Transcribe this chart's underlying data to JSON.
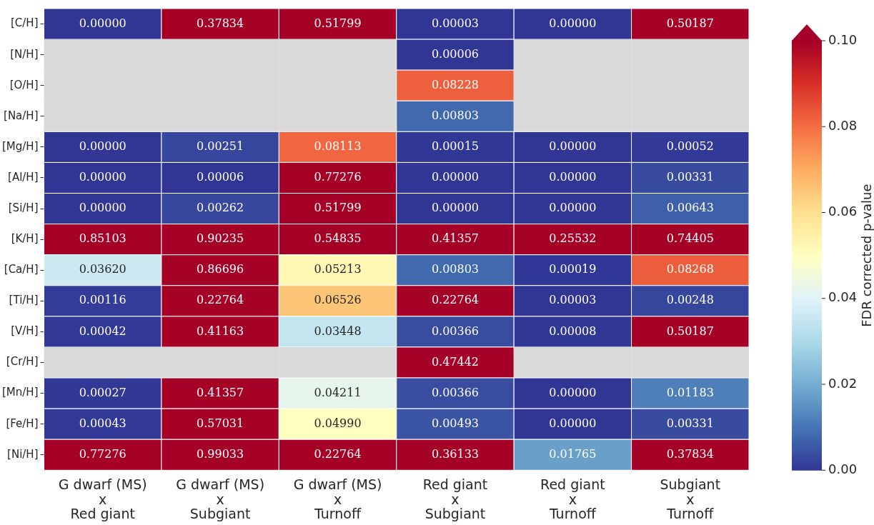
{
  "chart_data": {
    "type": "heatmap",
    "clabel": "FDR corrected p-value",
    "categories": [
      "G dwarf (MS)\nx\nRed giant",
      "G dwarf (MS)\nx\nSubgiant",
      "G dwarf (MS)\nx\nTurnoff",
      "Red giant\nx\nSubgiant",
      "Red giant\nx\nTurnoff",
      "Subgiant\nx\nTurnoff"
    ],
    "y_categories": [
      "[C/H]",
      "[N/H]",
      "[O/H]",
      "[Na/H]",
      "[Mg/H]",
      "[Al/H]",
      "[Si/H]",
      "[K/H]",
      "[Ca/H]",
      "[Ti/H]",
      "[V/H]",
      "[Cr/H]",
      "[Mn/H]",
      "[Fe/H]",
      "[Ni/H]"
    ],
    "cells": [
      [
        0.0,
        0.37834,
        0.51799,
        3e-05,
        0.0,
        0.50187
      ],
      [
        null,
        null,
        null,
        6e-05,
        null,
        null
      ],
      [
        null,
        null,
        null,
        0.08228,
        null,
        null
      ],
      [
        null,
        null,
        null,
        0.00803,
        null,
        null
      ],
      [
        0.0,
        0.00251,
        0.08113,
        0.00015,
        0.0,
        0.00052
      ],
      [
        0.0,
        6e-05,
        0.77276,
        0.0,
        0.0,
        0.00331
      ],
      [
        0.0,
        0.00262,
        0.51799,
        0.0,
        0.0,
        0.00643
      ],
      [
        0.85103,
        0.90235,
        0.54835,
        0.41357,
        0.25532,
        0.74405
      ],
      [
        0.0362,
        0.86696,
        0.05213,
        0.00803,
        0.00019,
        0.08268
      ],
      [
        0.00116,
        0.22764,
        0.06526,
        0.22764,
        3e-05,
        0.00248
      ],
      [
        0.00042,
        0.41163,
        0.03448,
        0.00366,
        8e-05,
        0.50187
      ],
      [
        null,
        null,
        null,
        0.47442,
        null,
        null
      ],
      [
        0.00027,
        0.41357,
        0.04211,
        0.00366,
        0.0,
        0.01183
      ],
      [
        0.00043,
        0.57031,
        0.0499,
        0.00493,
        0.0,
        0.00331
      ],
      [
        0.77276,
        0.99033,
        0.22764,
        0.36133,
        0.01765,
        0.37834
      ]
    ],
    "cell_labels": [
      [
        "0.00000",
        "0.37834",
        "0.51799",
        "0.00003",
        "0.00000",
        "0.50187"
      ],
      [
        null,
        null,
        null,
        "0.00006",
        null,
        null
      ],
      [
        null,
        null,
        null,
        "0.08228",
        null,
        null
      ],
      [
        null,
        null,
        null,
        "0.00803",
        null,
        null
      ],
      [
        "0.00000",
        "0.00251",
        "0.08113",
        "0.00015",
        "0.00000",
        "0.00052"
      ],
      [
        "0.00000",
        "0.00006",
        "0.77276",
        "0.00000",
        "0.00000",
        "0.00331"
      ],
      [
        "0.00000",
        "0.00262",
        "0.51799",
        "0.00000",
        "0.00000",
        "0.00643"
      ],
      [
        "0.85103",
        "0.90235",
        "0.54835",
        "0.41357",
        "0.25532",
        "0.74405"
      ],
      [
        "0.03620",
        "0.86696",
        "0.05213",
        "0.00803",
        "0.00019",
        "0.08268"
      ],
      [
        "0.00116",
        "0.22764",
        "0.06526",
        "0.22764",
        "0.00003",
        "0.00248"
      ],
      [
        "0.00042",
        "0.41163",
        "0.03448",
        "0.00366",
        "0.00008",
        "0.50187"
      ],
      [
        null,
        null,
        null,
        "0.47442",
        null,
        null
      ],
      [
        "0.00027",
        "0.41357",
        "0.04211",
        "0.00366",
        "0.00000",
        "0.01183"
      ],
      [
        "0.00043",
        "0.57031",
        "0.04990",
        "0.00493",
        "0.00000",
        "0.00331"
      ],
      [
        "0.77276",
        "0.99033",
        "0.22764",
        "0.36133",
        "0.01765",
        "0.37834"
      ]
    ],
    "clim": [
      0,
      0.1
    ],
    "cticks": [
      {
        "value": 0,
        "label": "0.00"
      },
      {
        "value": 0.02,
        "label": "0.02"
      },
      {
        "value": 0.04,
        "label": "0.04"
      },
      {
        "value": 0.06,
        "label": "0.06"
      },
      {
        "value": 0.08,
        "label": "0.08"
      },
      {
        "value": 0.1,
        "label": "0.10"
      }
    ]
  }
}
